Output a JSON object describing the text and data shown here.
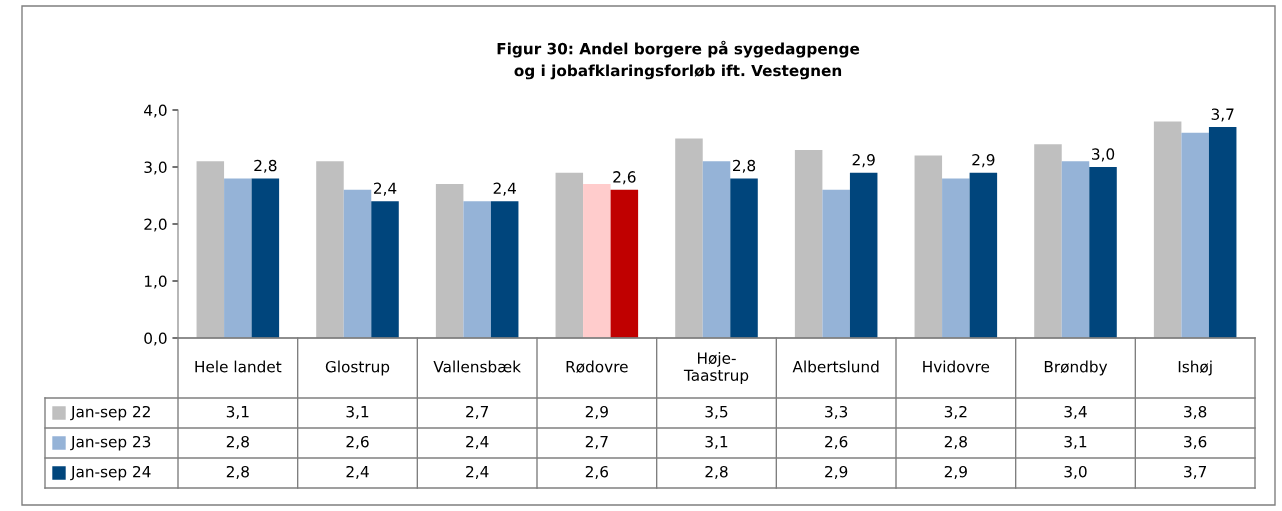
{
  "chart_data": {
    "type": "bar",
    "title": "Figur 30: Andel borgere på sygedagpenge\nog i jobafklaringsforløb ift. Vestegnen",
    "categories": [
      "Hele landet",
      "Glostrup",
      "Vallensbæk",
      "Rødovre",
      "Høje-Taastrup",
      "Albertslund",
      "Hvidovre",
      "Brøndby",
      "Ishøj"
    ],
    "series": [
      {
        "name": "Jan-sep 22",
        "color": "#bfbfbf",
        "colors": [
          "#bfbfbf",
          "#bfbfbf",
          "#bfbfbf",
          "#bfbfbf",
          "#bfbfbf",
          "#bfbfbf",
          "#bfbfbf",
          "#bfbfbf",
          "#bfbfbf"
        ],
        "values": [
          3.1,
          3.1,
          2.7,
          2.9,
          3.5,
          3.3,
          3.2,
          3.4,
          3.8
        ],
        "value_labels": [
          "3,1",
          "3,1",
          "2,7",
          "2,9",
          "3,5",
          "3,3",
          "3,2",
          "3,4",
          "3,8"
        ]
      },
      {
        "name": "Jan-sep 23",
        "color": "#95b3d7",
        "colors": [
          "#95b3d7",
          "#95b3d7",
          "#95b3d7",
          "#ffcccc",
          "#95b3d7",
          "#95b3d7",
          "#95b3d7",
          "#95b3d7",
          "#95b3d7"
        ],
        "values": [
          2.8,
          2.6,
          2.4,
          2.7,
          3.1,
          2.6,
          2.8,
          3.1,
          3.6
        ],
        "value_labels": [
          "2,8",
          "2,6",
          "2,4",
          "2,7",
          "3,1",
          "2,6",
          "2,8",
          "3,1",
          "3,6"
        ]
      },
      {
        "name": "Jan-sep 24",
        "color": "#00457c",
        "colors": [
          "#00457c",
          "#00457c",
          "#00457c",
          "#c00000",
          "#00457c",
          "#00457c",
          "#00457c",
          "#00457c",
          "#00457c"
        ],
        "values": [
          2.8,
          2.4,
          2.4,
          2.6,
          2.8,
          2.9,
          2.9,
          3.0,
          3.7
        ],
        "value_labels": [
          "2,8",
          "2,4",
          "2,4",
          "2,6",
          "2,8",
          "2,9",
          "2,9",
          "3,0",
          "3,7"
        ],
        "data_labels": true
      }
    ],
    "ylim": [
      0,
      4
    ],
    "yticks": [
      {
        "value": 0,
        "label": "0,0"
      },
      {
        "value": 1,
        "label": "1,0"
      },
      {
        "value": 2,
        "label": "2,0"
      },
      {
        "value": 3,
        "label": "3,0"
      },
      {
        "value": 4,
        "label": "4,0"
      }
    ],
    "grid": false,
    "legend": "bottom left"
  }
}
